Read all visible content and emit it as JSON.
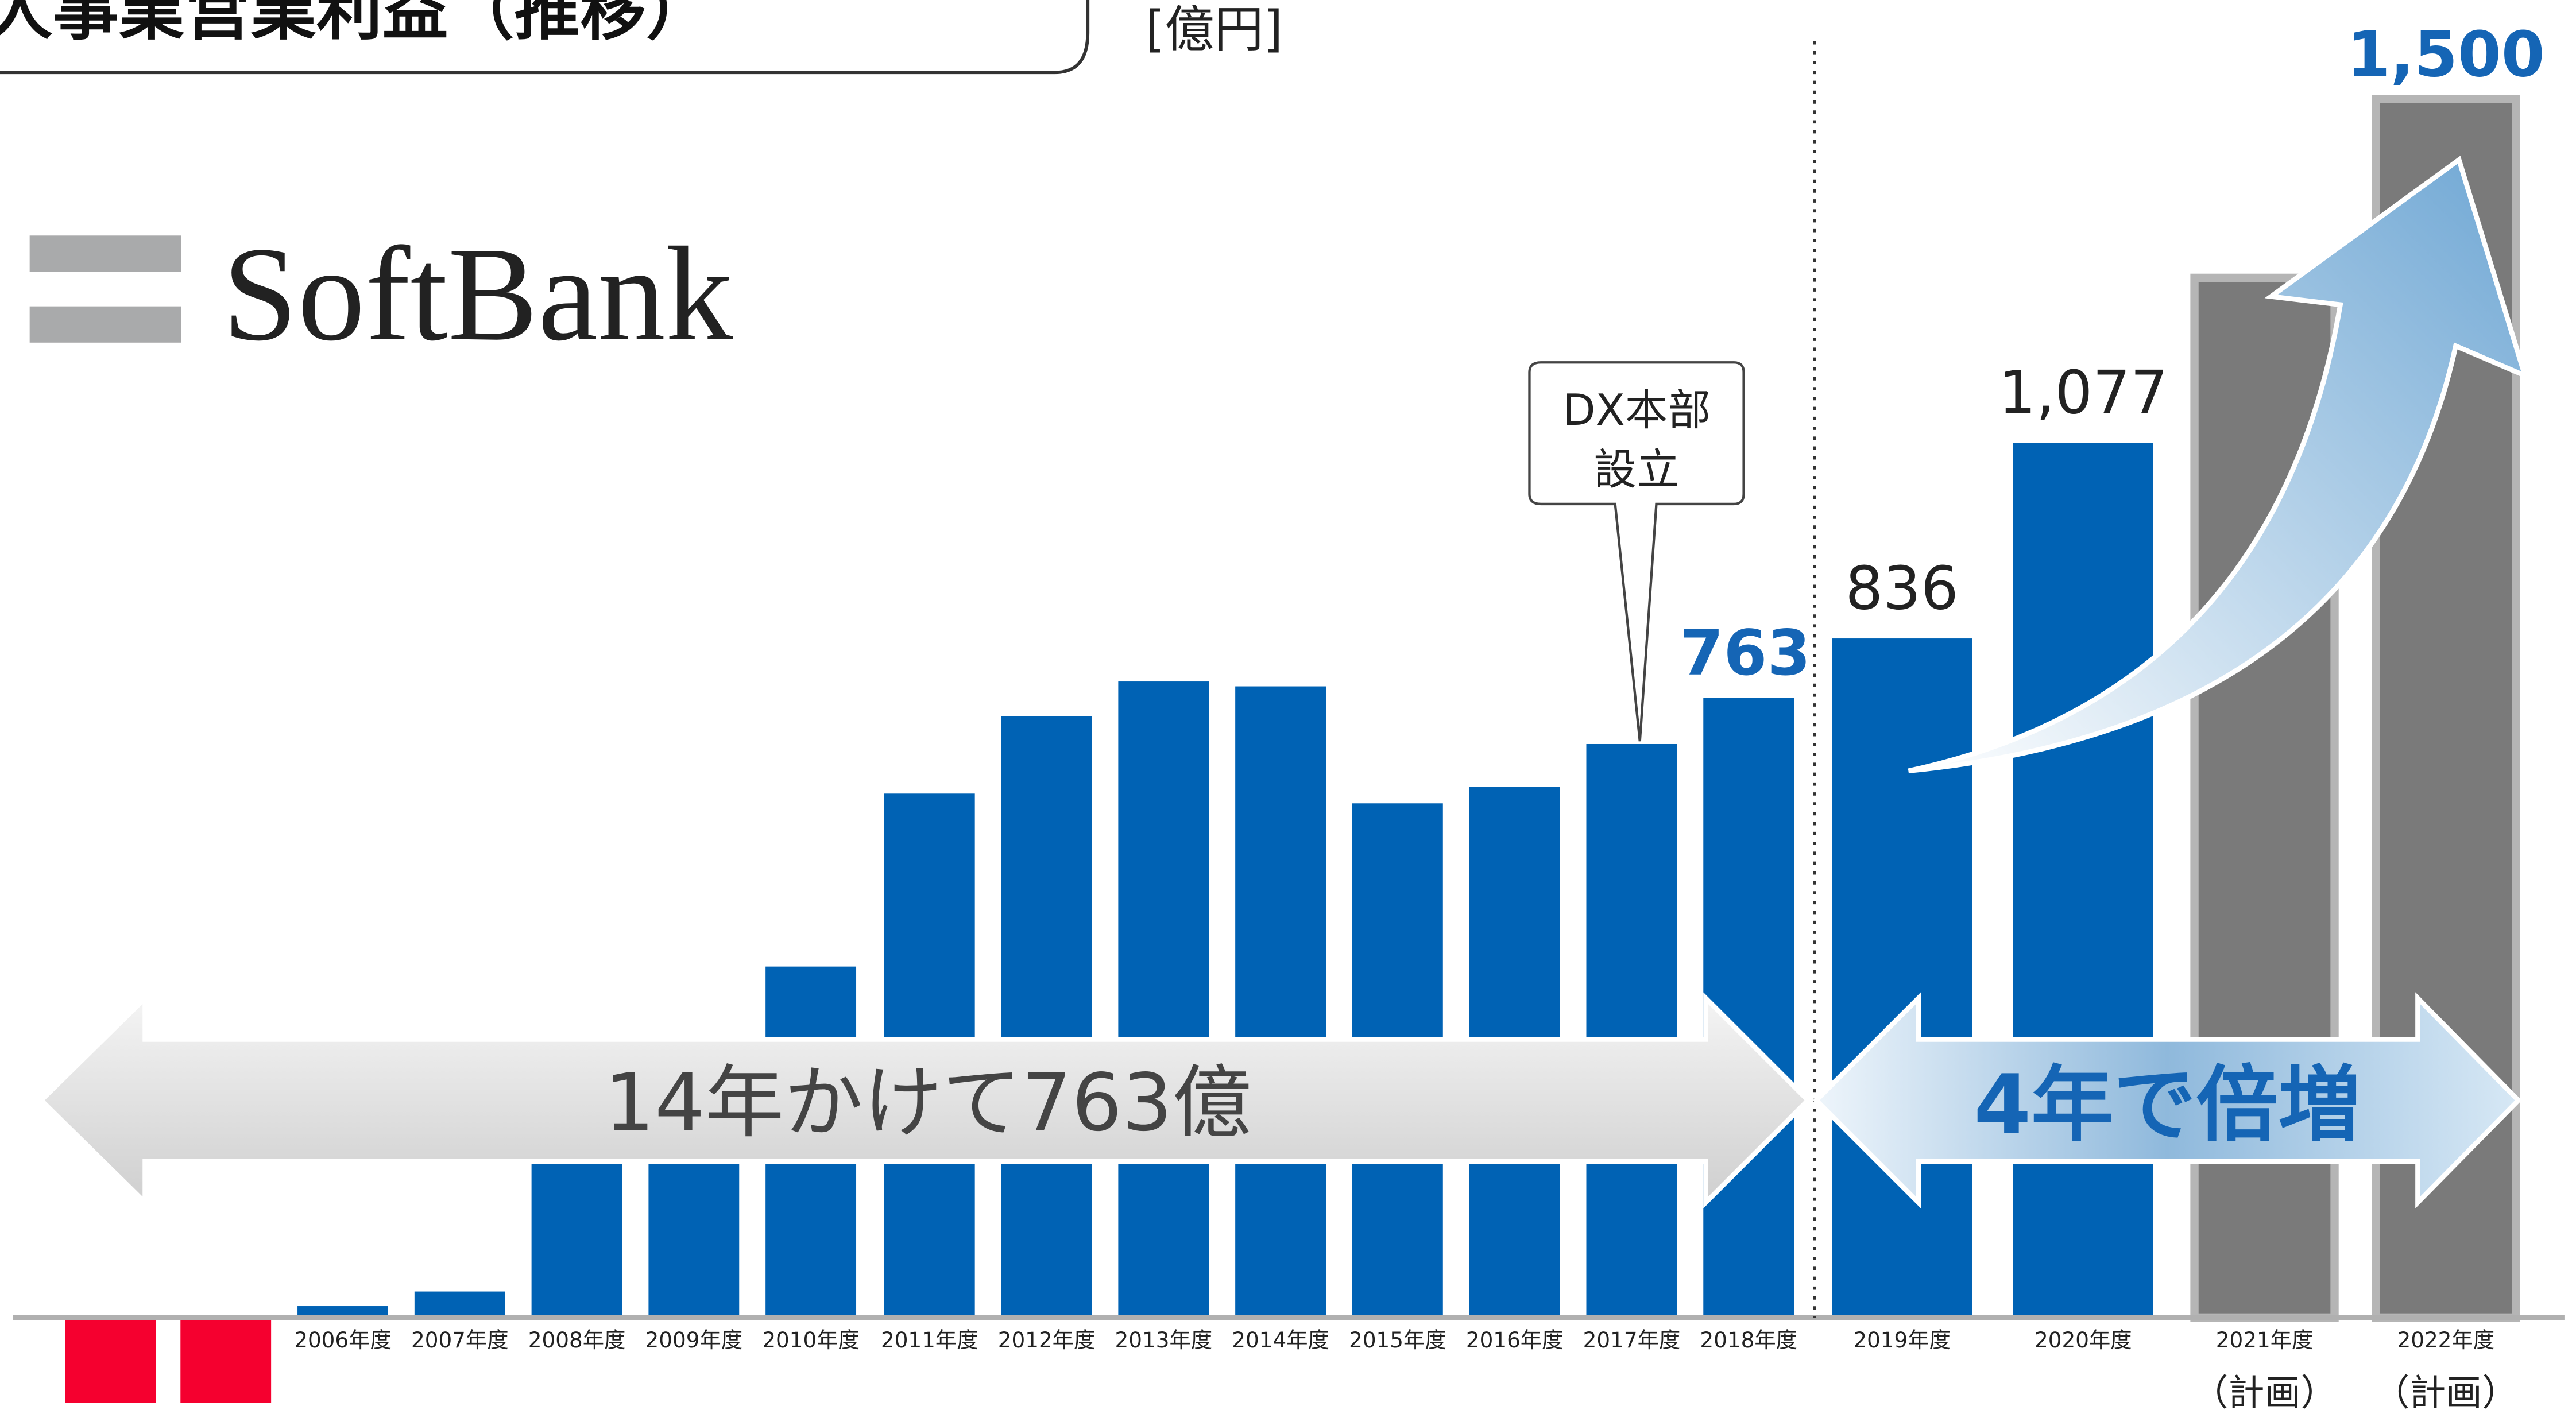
{
  "chart_data": {
    "type": "bar",
    "title": "人事業営業利益（推移）",
    "unit": "[億円]",
    "logo": "SoftBank",
    "categories": [
      null,
      null,
      "2006年度",
      "2007年度",
      "2008年度",
      "2009年度",
      "2010年度",
      "2011年度",
      "2012年度",
      "2013年度",
      "2014年度",
      "2015年度",
      "2016年度",
      "2017年度",
      "2018年度",
      "2019年度",
      "2020年度",
      "2021年度",
      "2022年度"
    ],
    "category_notes": [
      null,
      null,
      null,
      null,
      null,
      null,
      null,
      null,
      null,
      null,
      null,
      null,
      null,
      null,
      null,
      null,
      null,
      "（計画）",
      "（計画）"
    ],
    "values": [
      -105,
      -105,
      14,
      32,
      250,
      300,
      432,
      645,
      740,
      783,
      777,
      633,
      653,
      706,
      763,
      836,
      1077,
      1280,
      1500
    ],
    "value_labels": [
      null,
      null,
      null,
      null,
      null,
      null,
      null,
      null,
      null,
      null,
      null,
      null,
      null,
      null,
      "763",
      "836",
      "1,077",
      null,
      "1,500"
    ],
    "label_colors": [
      null,
      null,
      null,
      null,
      null,
      null,
      null,
      null,
      null,
      null,
      null,
      null,
      null,
      null,
      "#1565b5",
      "#222222",
      "#222222",
      null,
      "#1565b5"
    ],
    "colors": [
      "#f5002f",
      "#f5002f",
      "#0062b4",
      "#0062b4",
      "#0062b4",
      "#0062b4",
      "#0062b4",
      "#0062b4",
      "#0062b4",
      "#0062b4",
      "#0062b4",
      "#0062b4",
      "#0062b4",
      "#0062b4",
      "#0062b4",
      "#0062b4",
      "#0062b4",
      "#7a7a7a",
      "#7a7a7a"
    ],
    "ylim": [
      -120,
      1620
    ],
    "annotations": {
      "callout": [
        "DX本部",
        "設立"
      ],
      "left_arrow": "14年かけて763億",
      "right_arrow": "4年で倍増"
    }
  }
}
